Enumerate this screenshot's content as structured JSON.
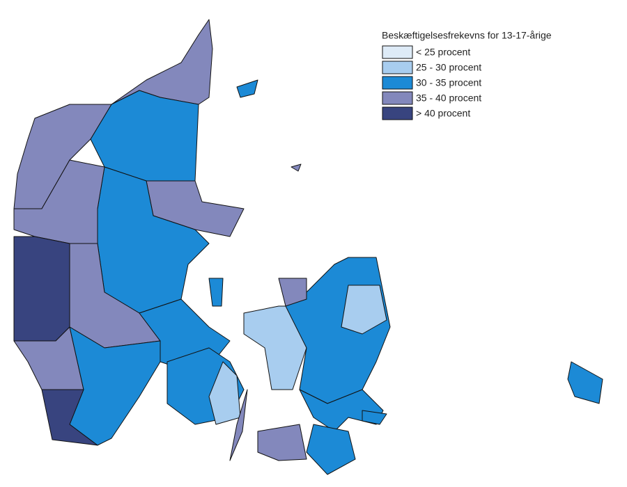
{
  "legend": {
    "title": "Beskæftigelsesfrekevns for 13-17-årige",
    "items": [
      {
        "label": "< 25 procent",
        "color": "#deebf7"
      },
      {
        "label": "25 - 30 procent",
        "color": "#a8cdef"
      },
      {
        "label": "30 - 35 procent",
        "color": "#1c8ad6"
      },
      {
        "label": "35 - 40 procent",
        "color": "#8388bc"
      },
      {
        "label": "> 40 procent",
        "color": "#38447f"
      }
    ]
  }
}
